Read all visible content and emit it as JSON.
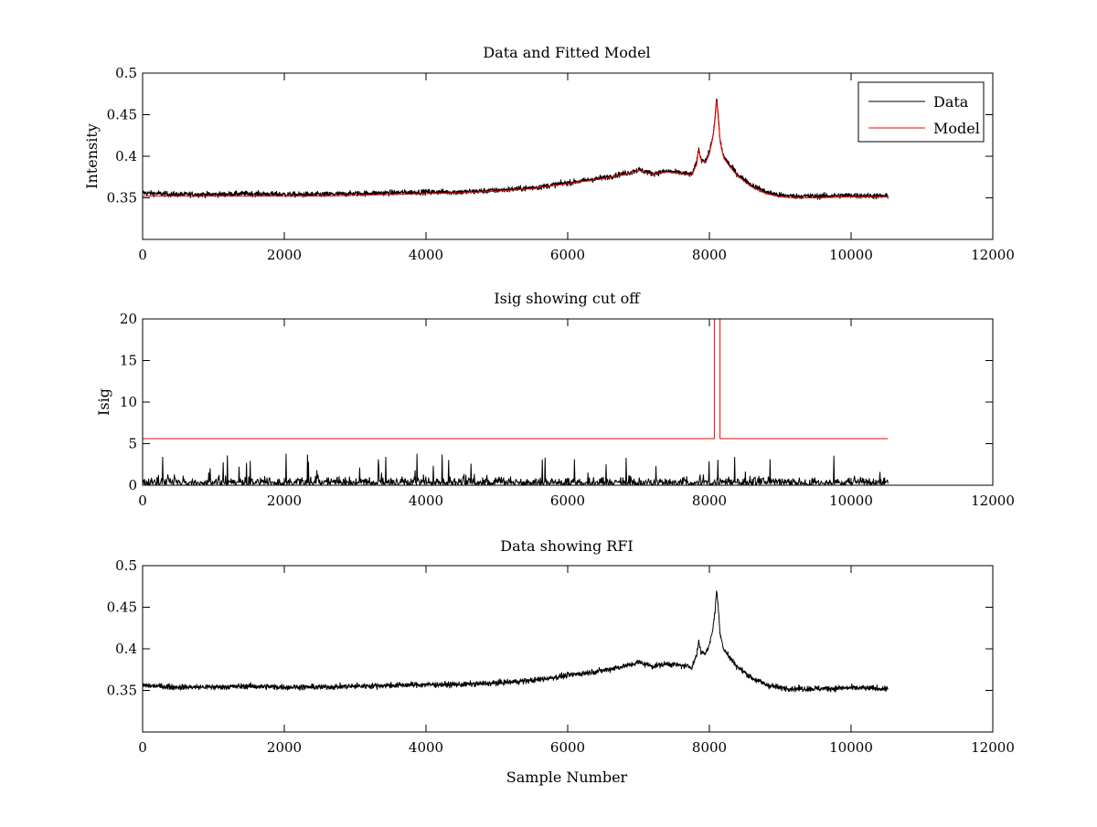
{
  "chart_data": [
    {
      "type": "line",
      "title": "Data and Fitted Model",
      "xlabel": "",
      "ylabel": "Intensity",
      "xlim": [
        0,
        12000
      ],
      "ylim": [
        0.3,
        0.5
      ],
      "xticks": [
        0,
        2000,
        4000,
        6000,
        8000,
        10000,
        12000
      ],
      "xtick_labels": [
        "0",
        "2000",
        "4000",
        "6000",
        "8000",
        "10000",
        "12000"
      ],
      "yticks": [
        0.35,
        0.4,
        0.45,
        0.5
      ],
      "ytick_labels": [
        "0.35",
        "0.4",
        "0.45",
        "0.5"
      ],
      "grid": false,
      "legend": {
        "placement": "top-right",
        "entries": [
          "Data",
          "Model"
        ]
      },
      "series": [
        {
          "name": "Data",
          "color": "#000000",
          "noise": 0.006,
          "x": [
            0,
            200,
            500,
            1000,
            1500,
            2000,
            2500,
            3000,
            3500,
            4000,
            4500,
            5000,
            5500,
            6000,
            6500,
            6900,
            7000,
            7200,
            7400,
            7600,
            7750,
            7820,
            7850,
            7880,
            7950,
            8000,
            8050,
            8080,
            8100,
            8120,
            8150,
            8200,
            8300,
            8400,
            8600,
            8800,
            9000,
            9200,
            9500,
            10000,
            10520
          ],
          "y": [
            0.356,
            0.355,
            0.354,
            0.354,
            0.355,
            0.354,
            0.354,
            0.355,
            0.356,
            0.357,
            0.357,
            0.359,
            0.362,
            0.368,
            0.374,
            0.381,
            0.384,
            0.379,
            0.382,
            0.38,
            0.378,
            0.392,
            0.41,
            0.396,
            0.395,
            0.405,
            0.425,
            0.445,
            0.47,
            0.455,
            0.42,
            0.4,
            0.388,
            0.378,
            0.365,
            0.357,
            0.353,
            0.352,
            0.352,
            0.353,
            0.352
          ]
        },
        {
          "name": "Model",
          "color": "#ff0000",
          "noise": 0,
          "x": [
            0,
            200,
            500,
            1000,
            1500,
            2000,
            2500,
            3000,
            3500,
            4000,
            4500,
            5000,
            5500,
            6000,
            6500,
            6900,
            7000,
            7200,
            7400,
            7600,
            7750,
            7820,
            7850,
            7880,
            7950,
            8000,
            8050,
            8080,
            8100,
            8120,
            8150,
            8200,
            8300,
            8400,
            8600,
            8800,
            9000,
            9200,
            9500,
            10000,
            10520
          ],
          "y": [
            0.352,
            0.352,
            0.352,
            0.352,
            0.352,
            0.352,
            0.352,
            0.353,
            0.354,
            0.355,
            0.356,
            0.358,
            0.361,
            0.367,
            0.373,
            0.38,
            0.383,
            0.378,
            0.381,
            0.379,
            0.377,
            0.39,
            0.41,
            0.394,
            0.393,
            0.403,
            0.423,
            0.443,
            0.468,
            0.452,
            0.418,
            0.398,
            0.386,
            0.376,
            0.363,
            0.355,
            0.351,
            0.35,
            0.35,
            0.351,
            0.351
          ]
        }
      ]
    },
    {
      "type": "line",
      "title": "Isig showing cut off",
      "xlabel": "",
      "ylabel": "Isig",
      "xlim": [
        0,
        12000
      ],
      "ylim": [
        0,
        20
      ],
      "xticks": [
        0,
        2000,
        4000,
        6000,
        8000,
        10000,
        12000
      ],
      "xtick_labels": [
        "0",
        "2000",
        "4000",
        "6000",
        "8000",
        "10000",
        "12000"
      ],
      "yticks": [
        0,
        5,
        10,
        15,
        20
      ],
      "ytick_labels": [
        "0",
        "5",
        "10",
        "15",
        "20"
      ],
      "grid": false,
      "series": [
        {
          "color": "#000000",
          "noise_spikes": true,
          "x": [
            0,
            10520
          ],
          "y": [
            0,
            0
          ],
          "spike_max": [
            5,
            3.8
          ]
        },
        {
          "color": "#ff0000",
          "x": [
            0,
            8070,
            8070,
            8150,
            8150,
            10520
          ],
          "y": [
            5.6,
            5.6,
            20,
            20,
            5.6,
            5.6
          ]
        }
      ]
    },
    {
      "type": "line",
      "title": "Data showing RFI",
      "xlabel": "Sample Number",
      "ylabel": "",
      "xlim": [
        0,
        12000
      ],
      "ylim": [
        0.3,
        0.5
      ],
      "xticks": [
        0,
        2000,
        4000,
        6000,
        8000,
        10000,
        12000
      ],
      "xtick_labels": [
        "0",
        "2000",
        "4000",
        "6000",
        "8000",
        "10000",
        "12000"
      ],
      "yticks": [
        0.35,
        0.4,
        0.45,
        0.5
      ],
      "ytick_labels": [
        "0.35",
        "0.4",
        "0.45",
        "0.5"
      ],
      "grid": false,
      "series": [
        {
          "color": "#000000",
          "noise": 0.006,
          "x": [
            0,
            200,
            500,
            1000,
            1500,
            2000,
            2500,
            3000,
            3500,
            4000,
            4500,
            5000,
            5500,
            6000,
            6500,
            6900,
            7000,
            7200,
            7400,
            7600,
            7750,
            7820,
            7850,
            7880,
            7950,
            8000,
            8050,
            8080,
            8100,
            8120,
            8150,
            8200,
            8300,
            8400,
            8600,
            8800,
            9000,
            9200,
            9500,
            10000,
            10520
          ],
          "y": [
            0.356,
            0.355,
            0.354,
            0.354,
            0.355,
            0.354,
            0.354,
            0.355,
            0.356,
            0.357,
            0.357,
            0.359,
            0.362,
            0.368,
            0.374,
            0.381,
            0.384,
            0.379,
            0.382,
            0.38,
            0.378,
            0.392,
            0.41,
            0.396,
            0.395,
            0.405,
            0.425,
            0.445,
            0.47,
            0.455,
            0.42,
            0.4,
            0.388,
            0.378,
            0.365,
            0.357,
            0.353,
            0.352,
            0.352,
            0.353,
            0.352
          ]
        }
      ]
    }
  ]
}
